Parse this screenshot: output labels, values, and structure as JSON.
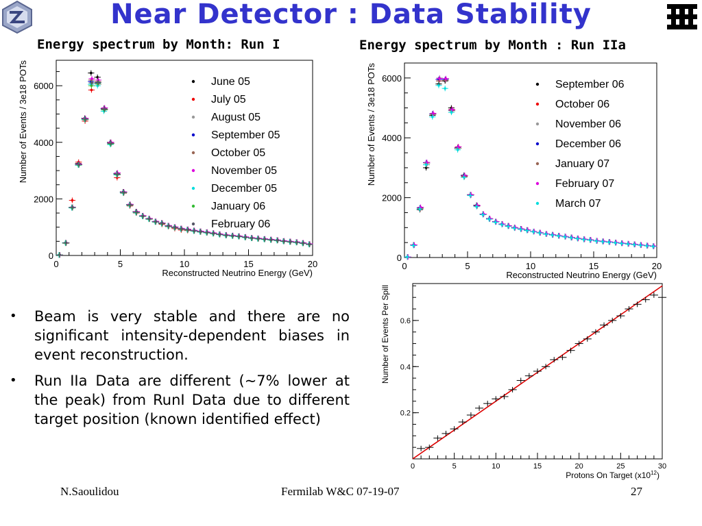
{
  "slide": {
    "title": "Near Detector  : Data Stability",
    "footer_left": "N.Saoulidou",
    "footer_center": "Fermilab W&C  07-19-07",
    "page_number": "27",
    "logos": [
      "detector-logo-icon",
      "fermilab-logo-icon"
    ],
    "colors": {
      "title": "#3333cc",
      "fit_line": "#dd0000"
    }
  },
  "bullets": [
    "Beam is very stable and there are no significant intensity-dependent biases in event reconstruction.",
    "Run IIa Data are different (~7% lower at the peak) from RunI Data due to different target position (known identified effect)"
  ],
  "chart_data": [
    {
      "type": "scatter",
      "title": "Energy spectrum by Month: Run I",
      "xlabel": "Reconstructed Neutrino Energy (GeV)",
      "ylabel": "Number of Events / 3e18 POTs",
      "xlim": [
        0,
        20
      ],
      "ylim": [
        0,
        6900
      ],
      "xticks": [
        0,
        5,
        10,
        15,
        20
      ],
      "yticks": [
        0,
        2000,
        4000,
        6000
      ],
      "grid": false,
      "legend_position": "top-right",
      "x": [
        0.25,
        0.75,
        1.25,
        1.75,
        2.25,
        2.75,
        3.25,
        3.75,
        4.25,
        4.75,
        5.25,
        5.75,
        6.25,
        6.75,
        7.25,
        7.75,
        8.25,
        8.75,
        9.25,
        9.75,
        10.25,
        10.75,
        11.25,
        11.75,
        12.25,
        12.75,
        13.25,
        13.75,
        14.25,
        14.75,
        15.25,
        15.75,
        16.25,
        16.75,
        17.25,
        17.75,
        18.25,
        18.75,
        19.25,
        19.75
      ],
      "series": [
        {
          "name": "June 05",
          "color": "#000000",
          "values": [
            20,
            450,
            1700,
            3250,
            4850,
            6450,
            6300,
            5200,
            4000,
            2900,
            2250,
            1800,
            1550,
            1400,
            1300,
            1200,
            1150,
            1050,
            1000,
            950,
            920,
            880,
            850,
            820,
            780,
            750,
            720,
            700,
            680,
            650,
            620,
            600,
            580,
            560,
            540,
            510,
            490,
            470,
            440,
            400
          ]
        },
        {
          "name": "July 05",
          "color": "#ee0000",
          "values": [
            20,
            430,
            1950,
            3300,
            4750,
            5850,
            6150,
            5150,
            3950,
            2750,
            2200,
            1750,
            1500,
            1380,
            1280,
            1180,
            1100,
            1020,
            950,
            900,
            880,
            860,
            830,
            800,
            770,
            740,
            710,
            690,
            670,
            640,
            610,
            590,
            570,
            550,
            530,
            500,
            480,
            460,
            430,
            390
          ]
        },
        {
          "name": "August 05",
          "color": "#999999",
          "values": [
            20,
            440,
            1680,
            3200,
            4800,
            6100,
            6050,
            5150,
            3950,
            2850,
            2220,
            1780,
            1520,
            1390,
            1290,
            1190,
            1130,
            1040,
            990,
            940,
            910,
            870,
            840,
            810,
            780,
            745,
            715,
            695,
            675,
            645,
            615,
            595,
            575,
            555,
            535,
            505,
            485,
            465,
            435,
            395
          ]
        },
        {
          "name": "September 05",
          "color": "#0000cc",
          "values": [
            20,
            440,
            1690,
            3210,
            4820,
            6150,
            6100,
            5180,
            3970,
            2880,
            2230,
            1790,
            1530,
            1395,
            1295,
            1195,
            1140,
            1045,
            995,
            945,
            915,
            875,
            845,
            815,
            785,
            748,
            718,
            698,
            678,
            648,
            618,
            598,
            578,
            558,
            538,
            508,
            488,
            468,
            438,
            398
          ]
        },
        {
          "name": "October 05",
          "color": "#996655",
          "values": [
            20,
            445,
            1700,
            3220,
            4830,
            6200,
            6150,
            5200,
            3980,
            2900,
            2240,
            1800,
            1540,
            1400,
            1300,
            1200,
            1145,
            1050,
            1000,
            950,
            920,
            880,
            850,
            820,
            790,
            752,
            722,
            702,
            682,
            652,
            622,
            602,
            582,
            562,
            542,
            512,
            492,
            472,
            442,
            402
          ]
        },
        {
          "name": "November 05",
          "color": "#dd00dd",
          "values": [
            20,
            450,
            1710,
            3230,
            4850,
            6250,
            6200,
            5220,
            4000,
            2920,
            2250,
            1810,
            1550,
            1410,
            1310,
            1210,
            1150,
            1060,
            1010,
            960,
            930,
            890,
            860,
            830,
            800,
            760,
            730,
            710,
            690,
            660,
            630,
            610,
            590,
            570,
            550,
            520,
            500,
            480,
            450,
            410
          ]
        },
        {
          "name": "December 05",
          "color": "#00dddd",
          "values": [
            20,
            440,
            1680,
            3190,
            4800,
            6050,
            6000,
            5100,
            3920,
            2850,
            2210,
            1770,
            1510,
            1380,
            1280,
            1180,
            1120,
            1030,
            980,
            930,
            900,
            860,
            830,
            800,
            770,
            735,
            705,
            685,
            665,
            635,
            605,
            585,
            565,
            545,
            525,
            495,
            475,
            455,
            425,
            385
          ]
        },
        {
          "name": "January 06",
          "color": "#33bb33",
          "values": [
            20,
            440,
            1690,
            3200,
            4810,
            6000,
            6080,
            5150,
            3940,
            2860,
            2220,
            1780,
            1520,
            1385,
            1285,
            1185,
            1125,
            1035,
            985,
            935,
            905,
            865,
            835,
            805,
            775,
            738,
            708,
            688,
            668,
            638,
            608,
            588,
            568,
            548,
            528,
            498,
            478,
            458,
            428,
            388
          ]
        },
        {
          "name": "February 06",
          "color": "#555566",
          "values": [
            20,
            445,
            1700,
            3210,
            4820,
            6100,
            6120,
            5170,
            3960,
            2870,
            2230,
            1790,
            1530,
            1390,
            1290,
            1190,
            1135,
            1040,
            990,
            940,
            910,
            870,
            840,
            810,
            780,
            742,
            712,
            692,
            672,
            642,
            612,
            592,
            572,
            552,
            532,
            502,
            482,
            462,
            432,
            392
          ]
        }
      ]
    },
    {
      "type": "scatter",
      "title": "Energy spectrum by Month : Run IIa",
      "xlabel": "Reconstructed Neutrino Energy (GeV)",
      "ylabel": "Number of Events / 3e18 POTs",
      "xlim": [
        0,
        20
      ],
      "ylim": [
        0,
        6500
      ],
      "xticks": [
        0,
        5,
        10,
        15,
        20
      ],
      "yticks": [
        0,
        2000,
        4000,
        6000
      ],
      "grid": false,
      "legend_position": "top-right",
      "x": [
        0.25,
        0.75,
        1.25,
        1.75,
        2.25,
        2.75,
        3.25,
        3.75,
        4.25,
        4.75,
        5.25,
        5.75,
        6.25,
        6.75,
        7.25,
        7.75,
        8.25,
        8.75,
        9.25,
        9.75,
        10.25,
        10.75,
        11.25,
        11.75,
        12.25,
        12.75,
        13.25,
        13.75,
        14.25,
        14.75,
        15.25,
        15.75,
        16.25,
        16.75,
        17.25,
        17.75,
        18.25,
        18.75,
        19.25,
        19.75
      ],
      "series": [
        {
          "name": "September 06",
          "color": "#000000",
          "values": [
            20,
            420,
            1600,
            3000,
            4750,
            5800,
            5900,
            5000,
            3650,
            2750,
            2100,
            1750,
            1450,
            1300,
            1200,
            1120,
            1060,
            1000,
            960,
            920,
            870,
            830,
            790,
            760,
            730,
            700,
            670,
            640,
            610,
            590,
            560,
            540,
            520,
            500,
            480,
            460,
            440,
            420,
            400,
            380
          ]
        },
        {
          "name": "October 06",
          "color": "#ee0000",
          "values": [
            20,
            415,
            1620,
            3100,
            4800,
            5900,
            5950,
            4950,
            3700,
            2700,
            2080,
            1720,
            1440,
            1290,
            1190,
            1110,
            1050,
            990,
            950,
            910,
            865,
            825,
            785,
            755,
            725,
            695,
            665,
            635,
            605,
            585,
            555,
            535,
            515,
            495,
            475,
            455,
            435,
            415,
            395,
            375
          ]
        },
        {
          "name": "November 06",
          "color": "#999999",
          "values": [
            20,
            410,
            1650,
            3150,
            4780,
            6000,
            5950,
            4900,
            3650,
            2720,
            2090,
            1730,
            1445,
            1295,
            1195,
            1115,
            1055,
            995,
            955,
            915,
            868,
            828,
            788,
            758,
            728,
            698,
            668,
            638,
            608,
            588,
            558,
            538,
            518,
            498,
            478,
            458,
            438,
            418,
            398,
            378
          ]
        },
        {
          "name": "December 06",
          "color": "#0000cc",
          "values": [
            20,
            420,
            1660,
            3170,
            4800,
            5950,
            5950,
            4920,
            3670,
            2730,
            2095,
            1735,
            1448,
            1298,
            1198,
            1118,
            1058,
            998,
            958,
            918,
            870,
            830,
            790,
            760,
            730,
            700,
            670,
            640,
            610,
            590,
            560,
            540,
            520,
            500,
            480,
            460,
            440,
            420,
            400,
            380
          ]
        },
        {
          "name": "January 07",
          "color": "#996655",
          "values": [
            20,
            418,
            1650,
            3160,
            4790,
            5900,
            5920,
            4910,
            3660,
            2725,
            2092,
            1732,
            1446,
            1296,
            1196,
            1116,
            1056,
            996,
            956,
            916,
            869,
            829,
            789,
            759,
            729,
            699,
            669,
            639,
            609,
            589,
            559,
            539,
            519,
            499,
            479,
            459,
            439,
            419,
            399,
            379
          ]
        },
        {
          "name": "February 07",
          "color": "#dd00dd",
          "values": [
            20,
            420,
            1680,
            3180,
            4820,
            5980,
            5980,
            4940,
            3700,
            2740,
            2100,
            1740,
            1450,
            1300,
            1200,
            1120,
            1060,
            1000,
            960,
            920,
            872,
            832,
            792,
            762,
            732,
            702,
            672,
            642,
            612,
            592,
            562,
            542,
            522,
            502,
            482,
            462,
            442,
            422,
            402,
            382
          ]
        },
        {
          "name": "March 07",
          "color": "#00dddd",
          "values": [
            20,
            400,
            1620,
            3100,
            4700,
            5750,
            5650,
            4850,
            3600,
            2680,
            2070,
            1700,
            1430,
            1280,
            1180,
            1100,
            1040,
            980,
            940,
            900,
            860,
            820,
            780,
            750,
            720,
            690,
            660,
            630,
            600,
            580,
            550,
            530,
            510,
            490,
            470,
            450,
            430,
            410,
            390,
            370
          ]
        }
      ]
    },
    {
      "type": "scatter",
      "title": "",
      "xlabel": "Protons On Target (x10",
      "xlabel_exp": "12",
      "xlabel_end": ")",
      "ylabel": "Number of Events Per Spill",
      "xlim": [
        0,
        30
      ],
      "ylim": [
        0,
        0.76
      ],
      "xticks": [
        0,
        5,
        10,
        15,
        20,
        25,
        30
      ],
      "yticks": [
        0.2,
        0.4,
        0.6
      ],
      "grid": false,
      "fit": {
        "x": [
          0,
          30
        ],
        "y": [
          0.0,
          0.75
        ]
      },
      "x": [
        1,
        2,
        3,
        4,
        5,
        6,
        7,
        8,
        9,
        10,
        11,
        12,
        13,
        14,
        15,
        16,
        17,
        18,
        19,
        20,
        21,
        22,
        23,
        24,
        25,
        26,
        27,
        28,
        29,
        30
      ],
      "series": [
        {
          "name": "",
          "color": "#000000",
          "values": [
            0.045,
            0.05,
            0.09,
            0.11,
            0.13,
            0.16,
            0.19,
            0.22,
            0.24,
            0.26,
            0.27,
            0.3,
            0.34,
            0.36,
            0.38,
            0.4,
            0.43,
            0.44,
            0.47,
            0.5,
            0.52,
            0.55,
            0.58,
            0.6,
            0.62,
            0.65,
            0.67,
            0.69,
            0.71,
            0.7
          ]
        }
      ]
    }
  ]
}
